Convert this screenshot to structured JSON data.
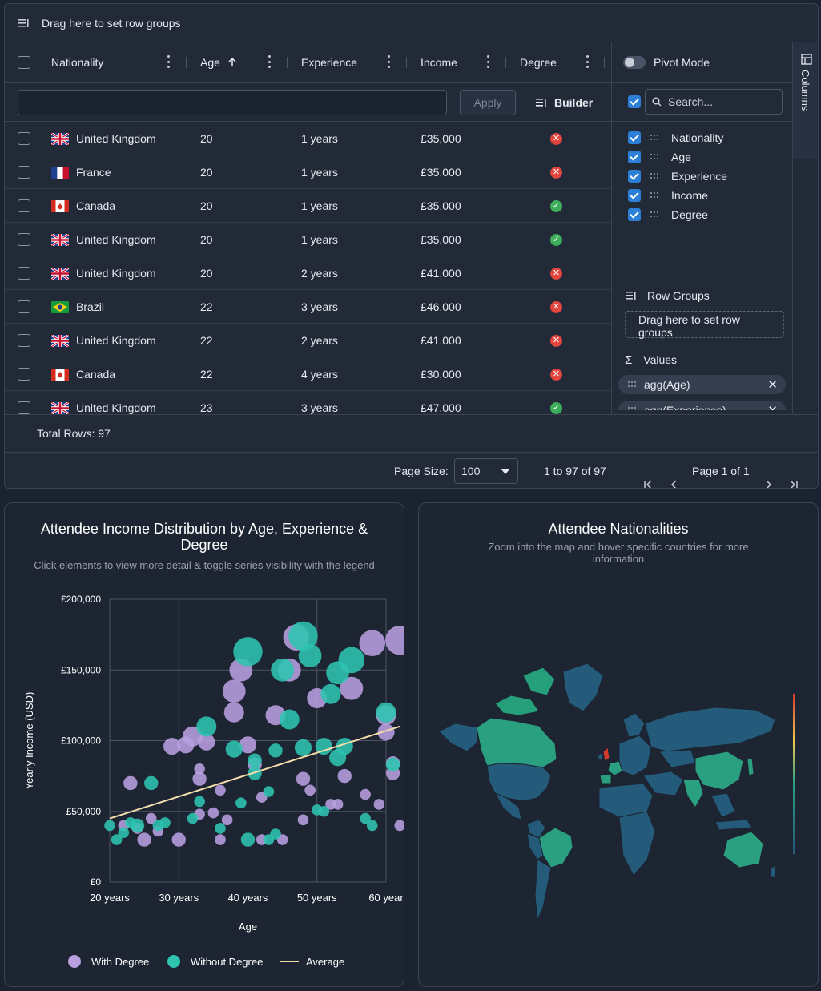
{
  "grid": {
    "row_group_bar": {
      "text": "Drag here to set row groups",
      "icon": "row-group-icon"
    },
    "columns": [
      {
        "label": "Nationality"
      },
      {
        "label": "Age",
        "sort": "ascending"
      },
      {
        "label": "Experience"
      },
      {
        "label": "Income"
      },
      {
        "label": "Degree"
      }
    ],
    "filter": {
      "apply_label": "Apply",
      "builder_label": "Builder",
      "value": ""
    },
    "rows": [
      {
        "nationality": "United Kingdom",
        "flag": "gb",
        "age": "20",
        "experience": "1 years",
        "income": "£35,000",
        "degree": false
      },
      {
        "nationality": "France",
        "flag": "fr",
        "age": "20",
        "experience": "1 years",
        "income": "£35,000",
        "degree": false
      },
      {
        "nationality": "Canada",
        "flag": "ca",
        "age": "20",
        "experience": "1 years",
        "income": "£35,000",
        "degree": true
      },
      {
        "nationality": "United Kingdom",
        "flag": "gb",
        "age": "20",
        "experience": "1 years",
        "income": "£35,000",
        "degree": true
      },
      {
        "nationality": "United Kingdom",
        "flag": "gb",
        "age": "20",
        "experience": "2 years",
        "income": "£41,000",
        "degree": false
      },
      {
        "nationality": "Brazil",
        "flag": "br",
        "age": "22",
        "experience": "3 years",
        "income": "£46,000",
        "degree": false
      },
      {
        "nationality": "United Kingdom",
        "flag": "gb",
        "age": "22",
        "experience": "2 years",
        "income": "£41,000",
        "degree": false
      },
      {
        "nationality": "Canada",
        "flag": "ca",
        "age": "22",
        "experience": "4 years",
        "income": "£30,000",
        "degree": false
      },
      {
        "nationality": "United Kingdom",
        "flag": "gb",
        "age": "23",
        "experience": "3 years",
        "income": "£47,000",
        "degree": true
      }
    ],
    "footer": {
      "total_rows_label": "Total Rows: 97",
      "page_size_label": "Page Size:",
      "page_size_value": "100",
      "range_text": "1 to 97 of 97",
      "page_text": "Page 1 of 1"
    }
  },
  "side_panel": {
    "pivot_label": "Pivot Mode",
    "search_placeholder": "Search...",
    "columns": [
      "Nationality",
      "Age",
      "Experience",
      "Income",
      "Degree"
    ],
    "row_groups_title": "Row Groups",
    "row_groups_drop": "Drag here to set row groups",
    "values_title": "Values",
    "values": [
      "agg(Age)",
      "agg(Experience)"
    ],
    "tab_label": "Columns"
  },
  "scatter_card": {
    "title": "Attendee Income Distribution by Age, Experience & Degree",
    "subtitle": "Click elements to view more detail & toggle series visibility with the legend"
  },
  "map_card": {
    "title": "Attendee Nationalities",
    "subtitle": "Zoom into the map and hover specific countries for more information"
  },
  "chart_data": {
    "type": "scatter",
    "title": "Attendee Income Distribution by Age, Experience & Degree",
    "xlabel": "Age",
    "ylabel": "Yearly Income (USD)",
    "xlim": [
      20,
      60
    ],
    "ylim": [
      0,
      200000
    ],
    "x_ticks": [
      "20 years",
      "30 years",
      "40 years",
      "50 years",
      "60 year"
    ],
    "y_ticks": [
      "£0",
      "£50,000",
      "£100,000",
      "£150,000",
      "£200,000"
    ],
    "colors": {
      "with_degree": "#b89fe0",
      "without_degree": "#2ec4b0",
      "average": "#f3deab"
    },
    "legend": [
      "With Degree",
      "Without Degree",
      "Average"
    ],
    "series": [
      {
        "name": "With Degree",
        "points": [
          [
            23,
            70000,
            3
          ],
          [
            25,
            30000,
            3
          ],
          [
            26,
            45000,
            2
          ],
          [
            29,
            96000,
            4
          ],
          [
            30,
            30000,
            3
          ],
          [
            31,
            97000,
            4
          ],
          [
            32,
            103000,
            5
          ],
          [
            33,
            80000,
            2
          ],
          [
            33,
            73000,
            3
          ],
          [
            34,
            99000,
            4
          ],
          [
            35,
            49000,
            2
          ],
          [
            36,
            65000,
            2
          ],
          [
            37,
            44000,
            2
          ],
          [
            38,
            135000,
            6
          ],
          [
            38,
            120000,
            5
          ],
          [
            39,
            150000,
            6
          ],
          [
            40,
            97000,
            4
          ],
          [
            41,
            83000,
            3
          ],
          [
            42,
            60000,
            2
          ],
          [
            44,
            118000,
            5
          ],
          [
            46,
            150000,
            6
          ],
          [
            47,
            173000,
            7
          ],
          [
            48,
            73000,
            3
          ],
          [
            48,
            44000,
            2
          ],
          [
            49,
            65000,
            2
          ],
          [
            50,
            130000,
            5
          ],
          [
            52,
            55000,
            2
          ],
          [
            54,
            75000,
            3
          ],
          [
            55,
            137000,
            6
          ],
          [
            57,
            62000,
            2
          ],
          [
            58,
            169000,
            7
          ],
          [
            59,
            55000,
            2
          ],
          [
            60,
            118000,
            5
          ],
          [
            60,
            106000,
            4
          ],
          [
            61,
            77000,
            3
          ],
          [
            62,
            40000,
            2
          ],
          [
            62,
            171000,
            8
          ],
          [
            22,
            40000,
            2
          ],
          [
            24,
            38000,
            2
          ],
          [
            27,
            36000,
            2
          ],
          [
            33,
            48000,
            2
          ],
          [
            36,
            30000,
            2
          ],
          [
            42,
            30000,
            2
          ],
          [
            45,
            30000,
            2
          ],
          [
            53,
            55000,
            2
          ],
          [
            61,
            84000,
            3
          ]
        ]
      },
      {
        "name": "Without Degree",
        "points": [
          [
            20,
            40000,
            2
          ],
          [
            21,
            30000,
            2
          ],
          [
            22,
            35000,
            2
          ],
          [
            23,
            42000,
            2
          ],
          [
            24,
            40000,
            3
          ],
          [
            26,
            70000,
            3
          ],
          [
            27,
            40000,
            2
          ],
          [
            28,
            42000,
            2
          ],
          [
            32,
            45000,
            2
          ],
          [
            33,
            57000,
            2
          ],
          [
            34,
            110000,
            5
          ],
          [
            36,
            38000,
            2
          ],
          [
            38,
            94000,
            4
          ],
          [
            39,
            56000,
            2
          ],
          [
            40,
            30000,
            3
          ],
          [
            40,
            163000,
            8
          ],
          [
            41,
            86000,
            3
          ],
          [
            41,
            77000,
            3
          ],
          [
            43,
            64000,
            2
          ],
          [
            44,
            93000,
            3
          ],
          [
            45,
            150000,
            6
          ],
          [
            46,
            115000,
            5
          ],
          [
            48,
            95000,
            4
          ],
          [
            48,
            174000,
            8
          ],
          [
            49,
            160000,
            6
          ],
          [
            50,
            51000,
            2
          ],
          [
            51,
            96000,
            4
          ],
          [
            52,
            133000,
            5
          ],
          [
            53,
            148000,
            6
          ],
          [
            53,
            88000,
            4
          ],
          [
            54,
            96000,
            4
          ],
          [
            55,
            157000,
            7
          ],
          [
            57,
            45000,
            2
          ],
          [
            58,
            40000,
            2
          ],
          [
            60,
            120000,
            5
          ],
          [
            61,
            83000,
            3
          ],
          [
            44,
            34000,
            2
          ],
          [
            51,
            50000,
            2
          ],
          [
            43,
            30000,
            2
          ]
        ]
      },
      {
        "name": "Average",
        "line": [
          [
            20,
            45000
          ],
          [
            62,
            110000
          ]
        ]
      }
    ]
  }
}
